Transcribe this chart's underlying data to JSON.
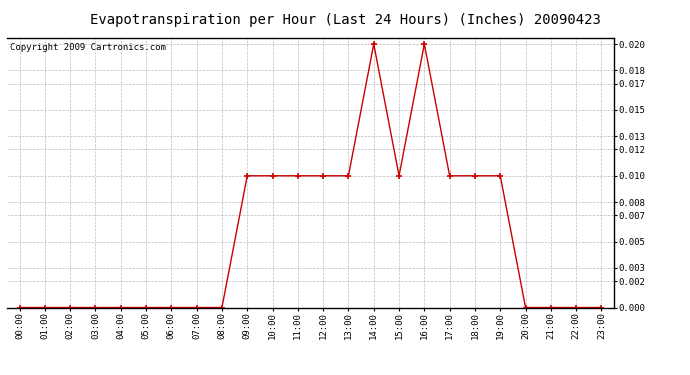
{
  "title": "Evapotranspiration per Hour (Last 24 Hours) (Inches) 20090423",
  "copyright": "Copyright 2009 Cartronics.com",
  "x_labels": [
    "00:00",
    "01:00",
    "02:00",
    "03:00",
    "04:00",
    "05:00",
    "06:00",
    "07:00",
    "08:00",
    "09:00",
    "10:00",
    "11:00",
    "12:00",
    "13:00",
    "14:00",
    "15:00",
    "16:00",
    "17:00",
    "18:00",
    "19:00",
    "20:00",
    "21:00",
    "22:00",
    "23:00"
  ],
  "y_values": [
    0.0,
    0.0,
    0.0,
    0.0,
    0.0,
    0.0,
    0.0,
    0.0,
    0.0,
    0.01,
    0.01,
    0.01,
    0.01,
    0.01,
    0.02,
    0.01,
    0.02,
    0.01,
    0.01,
    0.01,
    0.0,
    0.0,
    0.0,
    0.0
  ],
  "line_color": "#cc0000",
  "marker_color": "#cc0000",
  "bg_color": "#ffffff",
  "grid_color": "#bbbbbb",
  "ylim": [
    0.0,
    0.0205
  ],
  "yticks": [
    0.0,
    0.002,
    0.003,
    0.005,
    0.007,
    0.008,
    0.01,
    0.012,
    0.013,
    0.015,
    0.017,
    0.018,
    0.02
  ],
  "title_fontsize": 10,
  "copyright_fontsize": 6.5,
  "tick_fontsize": 6.5
}
